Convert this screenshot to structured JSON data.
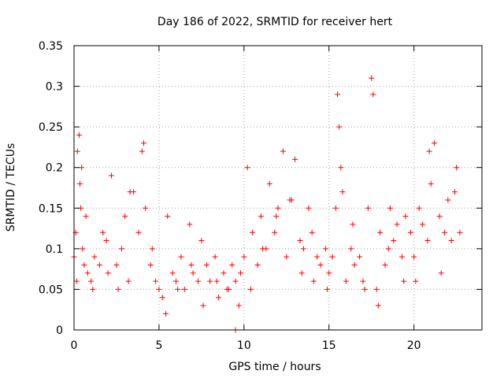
{
  "chart_data": {
    "type": "scatter",
    "title": "Day 186 of 2022, SRMTID for receiver hert",
    "xlabel": "GPS time / hours",
    "ylabel": "SRMTID / TECUs",
    "xlim": [
      0,
      24
    ],
    "ylim": [
      0,
      0.35
    ],
    "x_ticks": [
      0,
      5,
      10,
      15,
      20
    ],
    "x_tick_labels": [
      "0",
      "5",
      "10",
      "15",
      "20"
    ],
    "y_ticks": [
      0,
      0.05,
      0.1,
      0.15,
      0.2,
      0.25,
      0.3,
      0.35
    ],
    "y_tick_labels": [
      "0",
      "0.05",
      "0.1",
      "0.15",
      "0.2",
      "0.25",
      "0.3",
      "0.35"
    ],
    "grid": true,
    "marker": "plus",
    "color": "#ff0000",
    "series": [
      {
        "name": "SRMTID",
        "x": [
          0.0,
          0.1,
          0.2,
          0.3,
          0.35,
          0.4,
          0.5,
          0.6,
          0.8,
          1.0,
          1.2,
          1.5,
          1.7,
          2.0,
          2.2,
          2.5,
          2.8,
          3.0,
          3.2,
          3.5,
          3.8,
          4.0,
          4.2,
          4.5,
          4.8,
          5.0,
          5.2,
          5.5,
          5.8,
          6.0,
          6.3,
          6.5,
          6.8,
          7.0,
          7.3,
          7.5,
          7.8,
          8.0,
          8.3,
          8.5,
          8.8,
          9.0,
          9.3,
          9.5,
          9.8,
          10.0,
          10.2,
          10.5,
          10.8,
          11.0,
          11.3,
          11.5,
          11.8,
          12.0,
          12.3,
          12.5,
          12.8,
          13.0,
          13.3,
          13.5,
          13.8,
          14.0,
          14.3,
          14.5,
          14.8,
          15.0,
          15.2,
          15.4,
          15.5,
          15.6,
          15.8,
          16.0,
          16.3,
          16.5,
          16.8,
          17.0,
          17.3,
          17.5,
          17.6,
          17.8,
          18.0,
          18.3,
          18.5,
          18.8,
          19.0,
          19.3,
          19.5,
          19.8,
          20.0,
          20.3,
          20.5,
          20.8,
          21.0,
          21.2,
          21.5,
          21.8,
          22.0,
          22.2,
          22.5,
          22.7,
          0.15,
          0.45,
          0.7,
          1.1,
          1.9,
          2.6,
          3.3,
          4.1,
          4.6,
          5.4,
          6.1,
          6.9,
          7.6,
          8.4,
          9.1,
          9.7,
          10.4,
          11.1,
          11.9,
          12.7,
          13.4,
          14.1,
          14.9,
          15.7,
          16.4,
          17.1,
          17.9,
          18.6,
          19.4,
          20.1,
          20.9,
          21.6,
          22.4,
          9.5
        ],
        "y": [
          0.09,
          0.12,
          0.22,
          0.24,
          0.18,
          0.15,
          0.1,
          0.08,
          0.07,
          0.06,
          0.09,
          0.08,
          0.12,
          0.07,
          0.19,
          0.08,
          0.1,
          0.14,
          0.06,
          0.17,
          0.12,
          0.22,
          0.15,
          0.08,
          0.06,
          0.05,
          0.04,
          0.14,
          0.07,
          0.06,
          0.09,
          0.05,
          0.13,
          0.07,
          0.06,
          0.11,
          0.08,
          0.06,
          0.09,
          0.04,
          0.07,
          0.05,
          0.08,
          0.06,
          0.07,
          0.09,
          0.2,
          0.12,
          0.08,
          0.14,
          0.1,
          0.18,
          0.12,
          0.15,
          0.22,
          0.09,
          0.16,
          0.21,
          0.11,
          0.1,
          0.15,
          0.12,
          0.09,
          0.08,
          0.1,
          0.07,
          0.09,
          0.15,
          0.29,
          0.25,
          0.17,
          0.06,
          0.1,
          0.08,
          0.09,
          0.06,
          0.15,
          0.31,
          0.29,
          0.05,
          0.12,
          0.08,
          0.1,
          0.11,
          0.13,
          0.09,
          0.14,
          0.12,
          0.09,
          0.15,
          0.13,
          0.11,
          0.18,
          0.23,
          0.14,
          0.12,
          0.16,
          0.11,
          0.2,
          0.12,
          0.06,
          0.2,
          0.14,
          0.05,
          0.11,
          0.05,
          0.17,
          0.23,
          0.1,
          0.02,
          0.05,
          0.08,
          0.03,
          0.06,
          0.05,
          0.03,
          0.05,
          0.1,
          0.14,
          0.16,
          0.07,
          0.06,
          0.05,
          0.2,
          0.13,
          0.05,
          0.03,
          0.15,
          0.06,
          0.06,
          0.22,
          0.07,
          0.17,
          0.0
        ]
      }
    ]
  }
}
